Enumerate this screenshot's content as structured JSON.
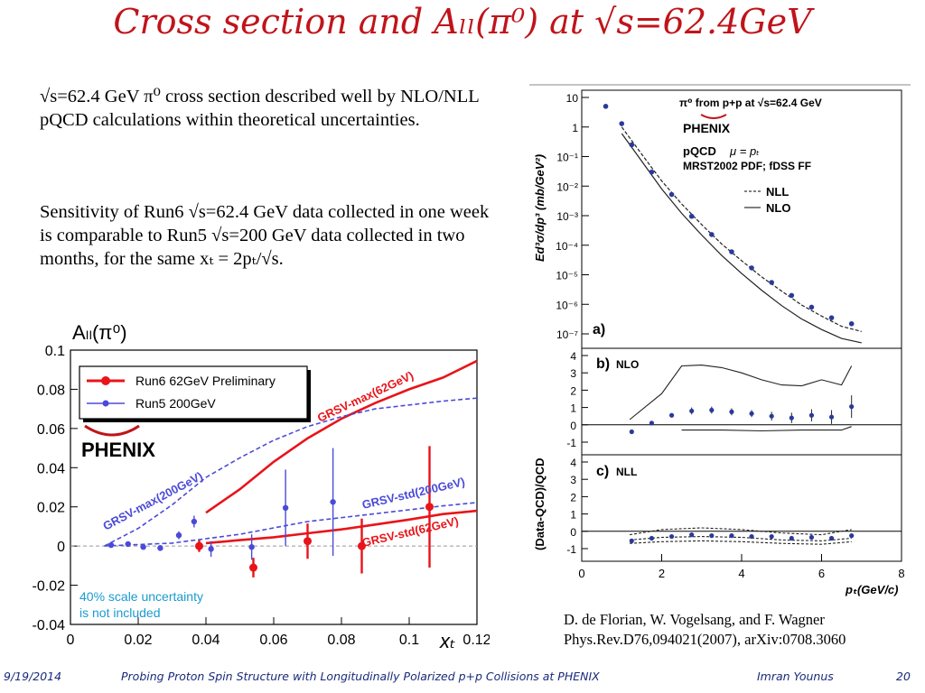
{
  "slide": {
    "title": "Cross section and Aₗₗ(π⁰) at √s=62.4GeV",
    "title_color": "#c0141a"
  },
  "bullets": {
    "p1": "√s=62.4 GeV π⁰ cross section described well by NLO/NLL pQCD calculations within theoretical uncertainties.",
    "p2": "Sensitivity of Run6 √s=62.4 GeV data collected in one week is comparable to Run5 √s=200 GeV data collected in two months, for the same xₜ = 2pₜ/√s."
  },
  "reference": {
    "line1": "D. de Florian, W. Vogelsang, and F. Wagner",
    "line2": "Phys.Rev.D76,094021(2007), arXiv:0708.3060"
  },
  "footer": {
    "date": "9/19/2014",
    "talk_title": "Probing Proton Spin Structure with Longitudinally Polarized p+p Collisions at PHENIX",
    "author": "Imran Younus",
    "page": "20"
  },
  "chart_data": [
    {
      "type": "scatter",
      "title": "Aₗₗ(π⁰)",
      "xlabel": "xₜ",
      "ylabel": "",
      "xlim": [
        0,
        0.12
      ],
      "ylim": [
        -0.04,
        0.1
      ],
      "x_ticks": [
        "0",
        "0.02",
        "0.04",
        "0.06",
        "0.08",
        "0.1",
        "0.12"
      ],
      "y_ticks": [
        "-0.04",
        "-0.02",
        "0",
        "0.02",
        "0.04",
        "0.06",
        "0.08",
        "0.1"
      ],
      "logo": "PHENIX",
      "note": [
        "40% scale uncertainty",
        "is not included"
      ],
      "legend": [
        "Run6  62GeV Preliminary",
        "Run5  200GeV"
      ],
      "curve_labels": [
        "GRSV-max(62GeV)",
        "GRSV-max(200GeV)",
        "GRSV-std(200GeV)",
        "GRSV-std(62GeV)"
      ],
      "colors": {
        "run6": "#e8141a",
        "run5": "#4a4ad8"
      },
      "series": [
        {
          "name": "Run6  62GeV Preliminary",
          "x": [
            0.038,
            0.054,
            0.07,
            0.086,
            0.106
          ],
          "y": [
            0.0,
            -0.011,
            0.0025,
            0.0,
            0.02
          ],
          "err": [
            0.003,
            0.005,
            0.009,
            0.014,
            0.031
          ]
        },
        {
          "name": "Run5  200GeV",
          "x": [
            0.012,
            0.017,
            0.0215,
            0.0265,
            0.032,
            0.0365,
            0.0415,
            0.0535,
            0.0635,
            0.0775
          ],
          "y": [
            0.0005,
            0.001,
            -0.0005,
            -0.001,
            0.0055,
            0.0125,
            -0.0015,
            -0.0005,
            0.0195,
            0.0225
          ],
          "err": [
            0.001,
            0.001,
            0.001,
            0.0015,
            0.002,
            0.003,
            0.004,
            0.0065,
            0.0195,
            0.0275
          ]
        }
      ],
      "curves": [
        {
          "label": "GRSV-max(62GeV)",
          "style": "solid",
          "x": [
            0.04,
            0.05,
            0.06,
            0.07,
            0.08,
            0.09,
            0.1,
            0.11,
            0.12
          ],
          "y": [
            0.017,
            0.029,
            0.043,
            0.055,
            0.065,
            0.073,
            0.08,
            0.086,
            0.0945
          ]
        },
        {
          "label": "GRSV-max(200GeV)",
          "style": "dashed",
          "x": [
            0.01,
            0.02,
            0.03,
            0.04,
            0.05,
            0.06,
            0.07,
            0.08,
            0.09,
            0.1,
            0.11,
            0.12
          ],
          "y": [
            0.0,
            0.009,
            0.021,
            0.035,
            0.045,
            0.054,
            0.061,
            0.066,
            0.07,
            0.072,
            0.074,
            0.0755
          ]
        },
        {
          "label": "GRSV-std(200GeV)",
          "style": "dashed",
          "x": [
            0.01,
            0.03,
            0.05,
            0.07,
            0.09,
            0.11,
            0.12
          ],
          "y": [
            0.0,
            0.0015,
            0.006,
            0.0125,
            0.0165,
            0.0205,
            0.0222
          ]
        },
        {
          "label": "GRSV-std(62GeV)",
          "style": "solid",
          "x": [
            0.04,
            0.05,
            0.06,
            0.07,
            0.08,
            0.09,
            0.1,
            0.11,
            0.12
          ],
          "y": [
            0.0015,
            0.003,
            0.0045,
            0.0065,
            0.0085,
            0.011,
            0.0135,
            0.0163,
            0.018
          ]
        }
      ]
    },
    {
      "type": "scatter",
      "title": "π⁰ from p+p at √s=62.4 GeV",
      "ylabel": "Ed³σ/dp³ (mb/GeV²)",
      "y_scale": "log",
      "ylim": [
        1e-07,
        10
      ],
      "y_ticks": [
        "10",
        "1",
        "10⁻¹",
        "10⁻²",
        "10⁻³",
        "10⁻⁴",
        "10⁻⁵",
        "10⁻⁶",
        "10⁻⁷"
      ],
      "logo": "PHENIX",
      "legend_text": [
        "pQCD",
        "μ = pₜ",
        "MRST2002 PDF; fDSS FF",
        "NLL",
        "NLO"
      ],
      "panel_label": "a)",
      "series": [
        {
          "name": "data",
          "x": [
            0.6,
            1.0,
            1.25,
            1.75,
            2.25,
            2.75,
            3.25,
            3.75,
            4.25,
            4.75,
            5.25,
            5.75,
            6.25,
            6.75
          ],
          "y": [
            5.0,
            1.3,
            0.25,
            0.03,
            0.0052,
            0.00095,
            0.00023,
            6e-05,
            1.7e-05,
            5.5e-06,
            2e-06,
            8e-07,
            3.5e-07,
            2.2e-07
          ]
        }
      ],
      "curves": [
        {
          "label": "NLL",
          "style": "dashed",
          "x": [
            1.0,
            1.5,
            2.0,
            2.5,
            3.0,
            3.5,
            4.0,
            4.5,
            5.0,
            5.5,
            6.0,
            6.5,
            7.0
          ],
          "y": [
            1.0,
            0.12,
            0.015,
            0.0025,
            0.0005,
            0.00011,
            3e-05,
            8.5e-06,
            2.8e-06,
            9.5e-07,
            4e-07,
            1.8e-07,
            1.2e-07
          ]
        },
        {
          "label": "NLO",
          "style": "solid",
          "x": [
            1.0,
            1.5,
            2.0,
            2.5,
            3.0,
            3.5,
            4.0,
            4.5,
            5.0,
            5.5,
            6.0,
            6.5,
            7.0
          ],
          "y": [
            0.6,
            0.07,
            0.008,
            0.0012,
            0.00022,
            4.5e-05,
            1.1e-05,
            3e-06,
            9e-07,
            3.2e-07,
            1.4e-07,
            7e-08,
            5e-08
          ]
        }
      ]
    },
    {
      "type": "line",
      "panel_label": "b)",
      "title": "NLO",
      "ylabel": "(Data-QCD)/QCD",
      "ylim": [
        -1.5,
        4.5
      ],
      "y_ticks": [
        "4",
        "3",
        "2",
        "1",
        "0",
        "-1"
      ],
      "series": [
        {
          "name": "data",
          "x": [
            1.25,
            1.75,
            2.25,
            2.75,
            3.25,
            3.75,
            4.25,
            4.75,
            5.25,
            5.75,
            6.25,
            6.75
          ],
          "y": [
            -0.4,
            0.1,
            0.55,
            0.8,
            0.85,
            0.75,
            0.65,
            0.5,
            0.4,
            0.55,
            0.45,
            1.05
          ],
          "err": [
            0.1,
            0.1,
            0.1,
            0.2,
            0.2,
            0.2,
            0.2,
            0.25,
            0.3,
            0.35,
            0.4,
            0.65
          ]
        }
      ],
      "curves": [
        {
          "style": "solid",
          "x": [
            1.2,
            2.0,
            2.5,
            3.0,
            3.5,
            4.0,
            4.5,
            5.0,
            5.5,
            6.0,
            6.5,
            6.75
          ],
          "y": [
            0.3,
            1.8,
            3.4,
            3.45,
            3.3,
            3.0,
            2.6,
            2.3,
            2.25,
            2.6,
            2.3,
            3.4
          ]
        },
        {
          "style": "solid",
          "x": [
            2.5,
            3.5,
            4.5,
            5.5,
            6.5,
            6.75
          ],
          "y": [
            -0.3,
            -0.3,
            -0.35,
            -0.3,
            -0.3,
            -0.1
          ]
        }
      ]
    },
    {
      "type": "line",
      "panel_label": "c)",
      "title": "NLL",
      "xlabel": "pₜ(GeV/c)",
      "xlim": [
        0,
        8
      ],
      "ylim": [
        -1.5,
        4.5
      ],
      "x_ticks": [
        "0",
        "2",
        "4",
        "6",
        "8"
      ],
      "y_ticks": [
        "4",
        "3",
        "2",
        "1",
        "0",
        "-1"
      ],
      "series": [
        {
          "name": "data",
          "x": [
            1.25,
            1.75,
            2.25,
            2.75,
            3.25,
            3.75,
            4.25,
            4.75,
            5.25,
            5.75,
            6.25,
            6.75
          ],
          "y": [
            -0.55,
            -0.4,
            -0.3,
            -0.2,
            -0.25,
            -0.25,
            -0.3,
            -0.3,
            -0.4,
            -0.35,
            -0.4,
            -0.25
          ]
        }
      ],
      "curves": [
        {
          "style": "dashed",
          "x": [
            1.2,
            2.0,
            3.0,
            4.0,
            5.0,
            6.0,
            6.75
          ],
          "y": [
            -0.2,
            0.1,
            0.2,
            0.1,
            -0.1,
            -0.2,
            0.1
          ]
        },
        {
          "style": "dashed",
          "x": [
            1.2,
            2.0,
            3.0,
            4.0,
            5.0,
            6.0,
            6.75
          ],
          "y": [
            -0.5,
            -0.35,
            -0.3,
            -0.35,
            -0.5,
            -0.55,
            -0.4
          ]
        },
        {
          "style": "dashed",
          "x": [
            1.2,
            2.0,
            3.0,
            4.0,
            5.0,
            6.0,
            6.75
          ],
          "y": [
            -0.7,
            -0.6,
            -0.55,
            -0.6,
            -0.7,
            -0.75,
            -0.6
          ]
        }
      ]
    }
  ]
}
